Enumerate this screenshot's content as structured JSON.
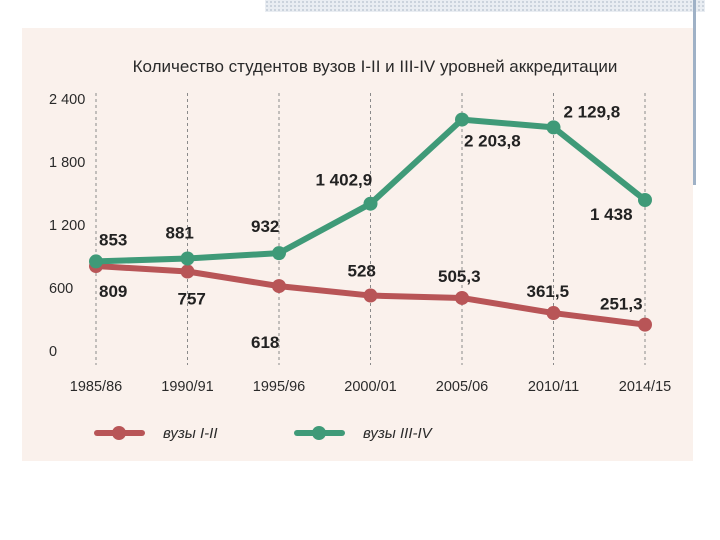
{
  "colors": {
    "series_1": "#b85557",
    "series_2": "#3f9a78",
    "grid": "#8a8a8a",
    "panel_background": "#faf1ec"
  },
  "chart_data": {
    "type": "line",
    "title": "Количество студентов вузов I-II и III-IV уровней аккредитации",
    "xlabel": "",
    "ylabel": "",
    "categories": [
      "1985/86",
      "1990/91",
      "1995/96",
      "2000/01",
      "2005/06",
      "2010/11",
      "2014/15"
    ],
    "ylim": [
      0,
      2400
    ],
    "yticks": [
      0,
      600,
      1200,
      1800,
      2400
    ],
    "ytick_labels": [
      "0",
      "600",
      "1 200",
      "1 800",
      "2 400"
    ],
    "grid": "vertical dashed",
    "legend_position": "bottom",
    "series": [
      {
        "name": "вузы I-II",
        "color": "#b85557",
        "values": [
          809,
          757,
          618,
          528,
          505.3,
          361.5,
          251.3
        ],
        "labels": [
          "809",
          "757",
          "618",
          "528",
          "505,3",
          "361,5",
          "251,3"
        ]
      },
      {
        "name": "вузы III-IV",
        "color": "#3f9a78",
        "values": [
          853,
          881,
          932,
          1402.9,
          2203.8,
          2129.8,
          1438
        ],
        "labels": [
          "853",
          "881",
          "932",
          "1 402,9",
          "2 203,8",
          "2 129,8",
          "1 438"
        ]
      }
    ]
  }
}
